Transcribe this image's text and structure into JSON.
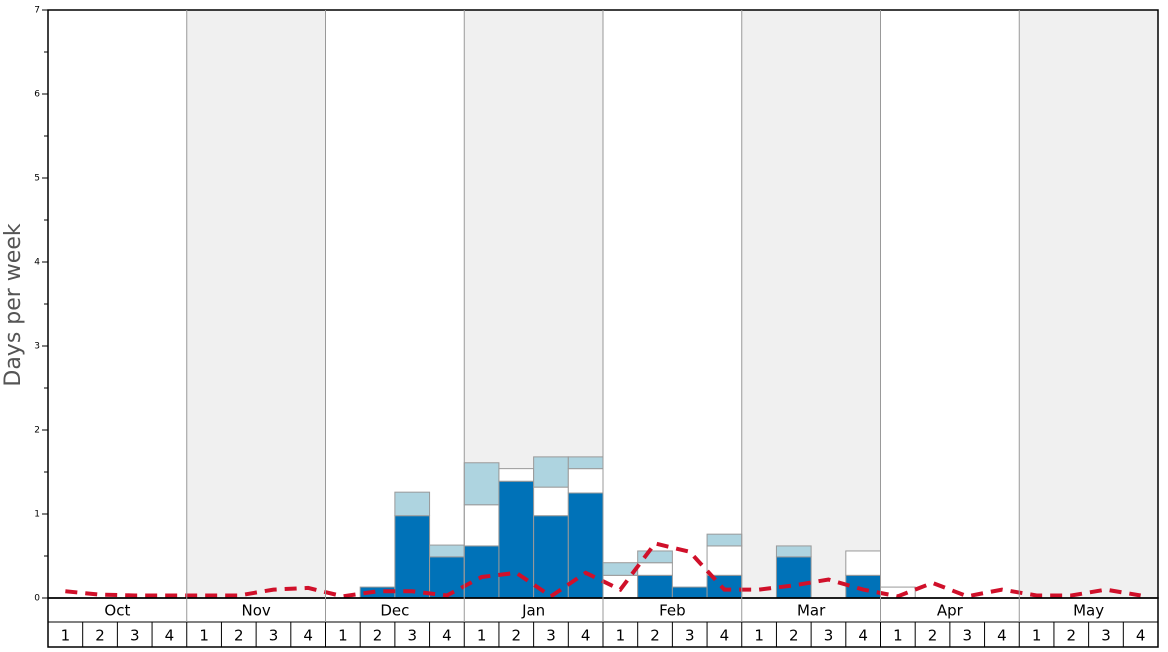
{
  "chart_data": {
    "type": "bar",
    "stacked": true,
    "y_label": "Days per week",
    "months": [
      "Oct",
      "Nov",
      "Dec",
      "Jan",
      "Feb",
      "Mar",
      "Apr",
      "May"
    ],
    "categories": [
      "1",
      "2",
      "3",
      "4",
      "1",
      "2",
      "3",
      "4",
      "1",
      "2",
      "3",
      "4",
      "1",
      "2",
      "3",
      "4",
      "1",
      "2",
      "3",
      "4",
      "1",
      "2",
      "3",
      "4",
      "1",
      "2",
      "3",
      "4",
      "1",
      "2",
      "3",
      "4"
    ],
    "series": [
      {
        "color": "#0072b8",
        "values": [
          0,
          0,
          0,
          0,
          0,
          0,
          0,
          0,
          0,
          0.13,
          0.98,
          0.49,
          0.62,
          1.39,
          0.98,
          1.25,
          0,
          0.27,
          0.13,
          0.27,
          0,
          0.49,
          0,
          0.27,
          0,
          0,
          0,
          0,
          0,
          0,
          0,
          0
        ]
      },
      {
        "color": "#ffffff",
        "values": [
          0,
          0,
          0,
          0,
          0,
          0,
          0,
          0,
          0,
          0,
          0,
          0,
          0.49,
          0.15,
          0.34,
          0.29,
          0.27,
          0.15,
          0,
          0.35,
          0,
          0,
          0,
          0.29,
          0.13,
          0,
          0,
          0,
          0,
          0,
          0,
          0
        ]
      },
      {
        "color": "#aed4e0",
        "values": [
          0,
          0,
          0,
          0,
          0,
          0,
          0,
          0,
          0,
          0,
          0.28,
          0.14,
          0.5,
          0,
          0.36,
          0.14,
          0.15,
          0.14,
          0,
          0.14,
          0,
          0.13,
          0,
          0,
          0,
          0,
          0,
          0,
          0,
          0,
          0,
          0
        ]
      }
    ],
    "line": {
      "color": "#d0102a",
      "values": [
        0.08,
        0.04,
        0.03,
        0.03,
        0.03,
        0.03,
        0.1,
        0.12,
        0.02,
        0.08,
        0.08,
        0.03,
        0.25,
        0.3,
        0.02,
        0.3,
        0.1,
        0.65,
        0.55,
        0.1,
        0.1,
        0.15,
        0.22,
        0.1,
        0.02,
        0.18,
        0.02,
        0.1,
        0.03,
        0.03,
        0.1,
        0.03
      ]
    },
    "ylim": [
      0,
      7
    ],
    "yticks": [
      0,
      1,
      2,
      3,
      4,
      5,
      6,
      7
    ],
    "shaded_months": [
      false,
      true,
      false,
      true,
      false,
      true,
      false,
      true
    ]
  }
}
